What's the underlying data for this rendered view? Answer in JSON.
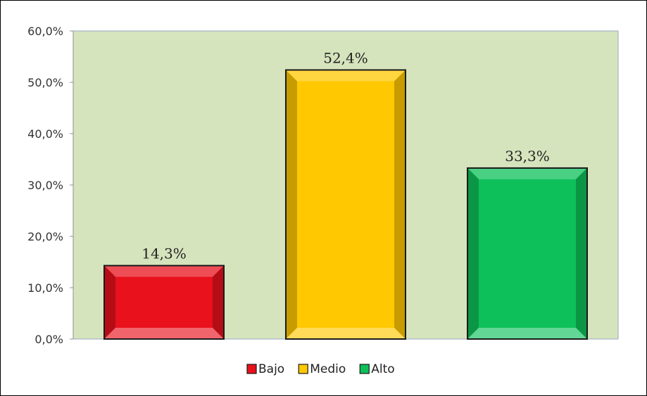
{
  "chart_data": {
    "type": "bar",
    "categories": [
      "Bajo",
      "Medio",
      "Alto"
    ],
    "values": [
      14.3,
      52.4,
      33.3
    ],
    "value_labels": [
      "14,3%",
      "52,4%",
      "33,3%"
    ],
    "colors": [
      "#e8111c",
      "#ffc800",
      "#0ec05a"
    ],
    "ylim": [
      0,
      60
    ],
    "yticks": [
      0,
      10,
      20,
      30,
      40,
      50,
      60
    ],
    "ytick_labels": [
      "0,0%",
      "10,0%",
      "20,0%",
      "30,0%",
      "40,0%",
      "50,0%",
      "60,0%"
    ],
    "plot_background": "#d6e4bd",
    "grid": false,
    "legend_position": "bottom",
    "legend": [
      "Bajo",
      "Medio",
      "Alto"
    ]
  }
}
